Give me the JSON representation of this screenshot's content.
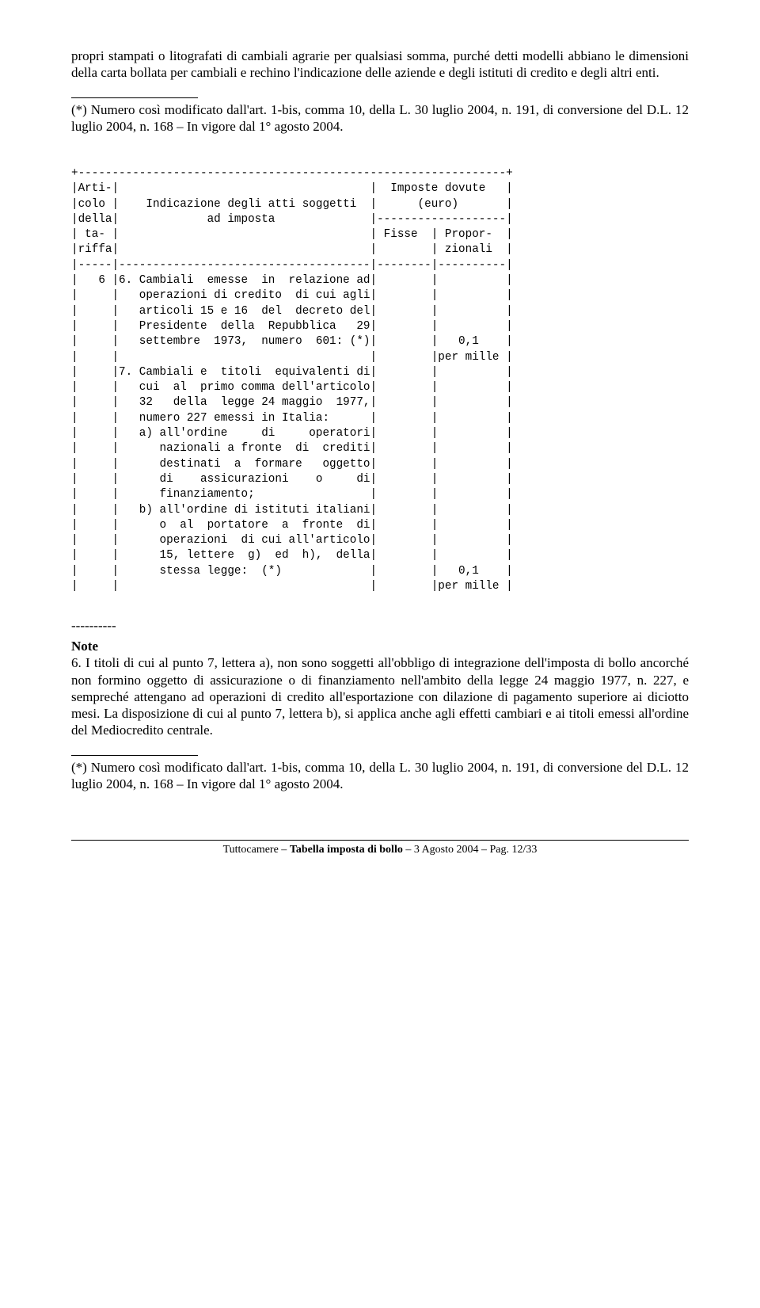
{
  "para1": "propri stampati o litografati di cambiali agrarie per qualsiasi somma, purché detti modelli abbiano le dimensioni della carta bollata per cambiali e rechino l'indicazione delle aziende e degli istituti di credito e degli altri enti.",
  "footnote1": "(*) Numero così modificato dall'art. 1-bis, comma 10, della L. 30 luglio 2004, n. 191, di conversione del D.L. 12 luglio 2004, n. 168 – In vigore dal 1° agosto 2004.",
  "table": {
    "top": "+---------------------------------------------------------------+",
    "r1": "|Arti-|                                     |  Imposte dovute   |",
    "r2": "|colo |    Indicazione degli atti soggetti  |      (euro)       |",
    "r3": "|della|             ad imposta              |-------------------|",
    "r4": "| ta- |                                     | Fisse  | Propor-  |",
    "r5": "|riffa|                                     |        | zionali  |",
    "sep": "|-----|-------------------------------------|--------|----------|",
    "b01": "|   6 |6. Cambiali  emesse  in  relazione ad|        |          |",
    "b02": "|     |   operazioni di credito  di cui agli|        |          |",
    "b03": "|     |   articoli 15 e 16  del  decreto del|        |          |",
    "b04": "|     |   Presidente  della  Repubblica   29|        |          |",
    "b05": "|     |   settembre  1973,  numero  601: (*)|        |   0,1    |",
    "b06": "|     |                                     |        |per mille |",
    "b07": "|     |7. Cambiali e  titoli  equivalenti di|        |          |",
    "b08": "|     |   cui  al  primo comma dell'articolo|        |          |",
    "b09": "|     |   32   della  legge 24 maggio  1977,|        |          |",
    "b10": "|     |   numero 227 emessi in Italia:      |        |          |",
    "b11": "|     |   a) all'ordine     di     operatori|        |          |",
    "b12": "|     |      nazionali a fronte  di  crediti|        |          |",
    "b13": "|     |      destinati  a  formare   oggetto|        |          |",
    "b14": "|     |      di    assicurazioni    o     di|        |          |",
    "b15": "|     |      finanziamento;                 |        |          |",
    "b16": "|     |   b) all'ordine di istituti italiani|        |          |",
    "b17": "|     |      o  al  portatore  a  fronte  di|        |          |",
    "b18": "|     |      operazioni  di cui all'articolo|        |          |",
    "b19": "|     |      15, lettere  g)  ed  h),  della|        |          |",
    "b20": "|     |      stessa legge:  (*)             |        |   0,1    |",
    "b21": "|     |                                     |        |per mille |"
  },
  "dashes": "----------",
  "note_label": "Note",
  "note6": "6. I titoli di cui al punto 7, lettera a), non sono soggetti all'obbligo di integrazione dell'imposta di bollo ancorché non formino oggetto di assicurazione o di finanziamento nell'ambito della legge 24 maggio 1977, n. 227, e sempreché attengano ad operazioni di credito all'esportazione con dilazione di pagamento superiore ai diciotto mesi. La disposizione di cui al punto 7, lettera b), si applica anche agli effetti cambiari e ai titoli emessi all'ordine del Mediocredito centrale.",
  "footnote2": "(*) Numero così modificato dall'art. 1-bis, comma 10, della L. 30 luglio 2004, n. 191, di conversione del D.L. 12 luglio 2004, n. 168 – In vigore dal 1° agosto 2004.",
  "footer_prefix": "Tuttocamere – ",
  "footer_bold": "Tabella imposta di bollo",
  "footer_suffix": " – 3 Agosto 2004 – Pag. 12/33"
}
